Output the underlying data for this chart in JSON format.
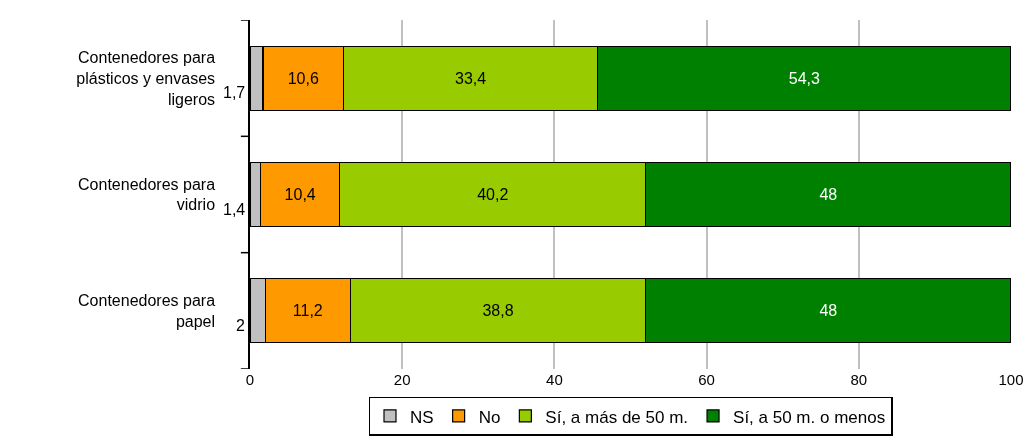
{
  "chart_data": {
    "type": "bar",
    "orientation": "horizontal",
    "stacked": true,
    "categories": [
      "Contenedores para plásticos y envases ligeros",
      "Contenedores para vidrio",
      "Contenedores para papel"
    ],
    "series": [
      {
        "name": "NS",
        "color": "#c0c0c0",
        "values": [
          1.7,
          1.4,
          2
        ],
        "value_labels": [
          "1,7",
          "1,4",
          "2"
        ]
      },
      {
        "name": "No",
        "color": "#ff9900",
        "values": [
          10.6,
          10.4,
          11.2
        ],
        "value_labels": [
          "10,6",
          "10,4",
          "11,2"
        ]
      },
      {
        "name": "Sí, a más de 50 m.",
        "color": "#99cc00",
        "values": [
          33.4,
          40.2,
          38.8
        ],
        "value_labels": [
          "33,4",
          "40,2",
          "38,8"
        ]
      },
      {
        "name": "Sí, a 50 m. o menos",
        "color": "#008000",
        "values": [
          54.3,
          48,
          48
        ],
        "value_labels": [
          "54,3",
          "48",
          "48"
        ]
      }
    ],
    "xlim": [
      0,
      100
    ],
    "xticks": [
      0,
      20,
      40,
      60,
      80,
      100
    ],
    "grid": "x",
    "legend": "bottom"
  }
}
